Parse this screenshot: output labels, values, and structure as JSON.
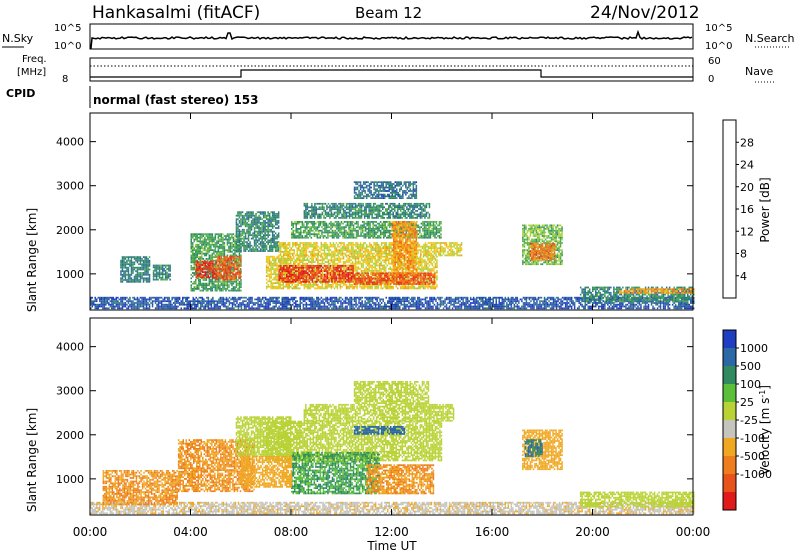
{
  "header": {
    "station": "Hankasalmi (fitACF)",
    "beam": "Beam 12",
    "date": "24/Nov/2012"
  },
  "summary_panels": {
    "nsky_label": "N.Sky",
    "nsearch_label": "N.Search",
    "freq_label_line1": "Freq.",
    "freq_label_line2": "[MHz]",
    "nave_label": "Nave",
    "cpid_label": "CPID",
    "cpid_value": "normal (fast stereo) 153",
    "left_ticks_top": [
      "10^5",
      "10^0"
    ],
    "right_ticks_top": [
      "10^5",
      "10^0"
    ],
    "freq_ticks": [
      "8"
    ],
    "nave_ticks": [
      "60",
      "0"
    ]
  },
  "colors": {
    "power_scale": [
      "#0b1ef2",
      "#203fbf",
      "#2f6a9a",
      "#2f8a66",
      "#51ad4c",
      "#a9d23b",
      "#f3c61c",
      "#f59a1a",
      "#ef6f1a",
      "#e73b1a",
      "#e1141a"
    ],
    "velocity_scale": [
      "#1f3dc1",
      "#2c68a5",
      "#2f8a5f",
      "#5cbf39",
      "#b9d236",
      "#c5c5be",
      "#f0a823",
      "#ed7d1e",
      "#e8531b",
      "#e11b1a"
    ]
  },
  "chart_data": [
    {
      "type": "heatmap",
      "name": "power",
      "title": "Hankasalmi (fitACF) Beam 12 24/Nov/2012",
      "xlabel": "Time UT",
      "ylabel": "Slant Range [km]",
      "x_ticks": [
        "00:00",
        "04:00",
        "08:00",
        "12:00",
        "16:00",
        "20:00",
        "00:00"
      ],
      "x_range_hours": [
        0,
        24
      ],
      "y_ticks": [
        1000,
        2000,
        3000,
        4000
      ],
      "y_range_km": [
        180,
        4650
      ],
      "colorbar_label": "Power [dB]",
      "colorbar_ticks": [
        4,
        8,
        12,
        16,
        20,
        24,
        28
      ],
      "colorbar_range": [
        0,
        32
      ],
      "regions": [
        {
          "t0": 0.0,
          "t1": 24.0,
          "r0": 200,
          "r1": 450,
          "level": 6
        },
        {
          "t0": 1.2,
          "t1": 2.4,
          "r0": 800,
          "r1": 1400,
          "level": 9
        },
        {
          "t0": 2.5,
          "t1": 3.2,
          "r0": 850,
          "r1": 1200,
          "level": 10
        },
        {
          "t0": 4.0,
          "t1": 6.0,
          "r0": 600,
          "r1": 1900,
          "level": 12
        },
        {
          "t0": 4.2,
          "t1": 5.0,
          "r0": 900,
          "r1": 1300,
          "level": 28
        },
        {
          "t0": 5.0,
          "t1": 6.0,
          "r0": 850,
          "r1": 1400,
          "level": 26
        },
        {
          "t0": 5.8,
          "t1": 7.5,
          "r0": 1500,
          "r1": 2400,
          "level": 10
        },
        {
          "t0": 7.0,
          "t1": 13.8,
          "r0": 650,
          "r1": 1400,
          "level": 18
        },
        {
          "t0": 7.5,
          "t1": 10.5,
          "r0": 800,
          "r1": 1200,
          "level": 28
        },
        {
          "t0": 10.5,
          "t1": 13.7,
          "r0": 750,
          "r1": 1000,
          "level": 26
        },
        {
          "t0": 7.5,
          "t1": 14.8,
          "r0": 1400,
          "r1": 1700,
          "level": 18
        },
        {
          "t0": 8.0,
          "t1": 14.0,
          "r0": 1800,
          "r1": 2200,
          "level": 12
        },
        {
          "t0": 8.5,
          "t1": 13.5,
          "r0": 2250,
          "r1": 2600,
          "level": 10
        },
        {
          "t0": 10.5,
          "t1": 13.0,
          "r0": 2700,
          "r1": 3100,
          "level": 8
        },
        {
          "t0": 12.0,
          "t1": 13.0,
          "r0": 1000,
          "r1": 2200,
          "level": 22
        },
        {
          "t0": 17.2,
          "t1": 18.8,
          "r0": 1200,
          "r1": 2100,
          "level": 14
        },
        {
          "t0": 17.5,
          "t1": 18.5,
          "r0": 1300,
          "r1": 1700,
          "level": 24
        },
        {
          "t0": 19.5,
          "t1": 24.0,
          "r0": 350,
          "r1": 700,
          "level": 10
        },
        {
          "t0": 21.0,
          "t1": 24.0,
          "r0": 550,
          "r1": 650,
          "level": 22
        }
      ]
    },
    {
      "type": "heatmap",
      "name": "velocity",
      "xlabel": "Time UT",
      "ylabel": "Slant Range [km]",
      "x_ticks": [
        "00:00",
        "04:00",
        "08:00",
        "12:00",
        "16:00",
        "20:00",
        "00:00"
      ],
      "x_range_hours": [
        0,
        24
      ],
      "y_ticks": [
        1000,
        2000,
        3000,
        4000
      ],
      "y_range_km": [
        180,
        4650
      ],
      "colorbar_label": "Velocity [m s^-1]",
      "colorbar_ticks": [
        "1000",
        "500",
        "100",
        "25",
        "-25",
        "-100",
        "-500",
        "-1000"
      ],
      "regions": [
        {
          "t0": 0.0,
          "t1": 24.0,
          "r0": 200,
          "r1": 450,
          "level": -50
        },
        {
          "t0": 0.5,
          "t1": 3.5,
          "r0": 400,
          "r1": 1200,
          "level": -300
        },
        {
          "t0": 3.5,
          "t1": 6.5,
          "r0": 700,
          "r1": 1900,
          "level": -300
        },
        {
          "t0": 5.8,
          "t1": 8.0,
          "r0": 1500,
          "r1": 2400,
          "level": 0
        },
        {
          "t0": 7.0,
          "t1": 14.0,
          "r0": 1400,
          "r1": 2300,
          "level": 0
        },
        {
          "t0": 8.5,
          "t1": 14.5,
          "r0": 2300,
          "r1": 2700,
          "level": 0
        },
        {
          "t0": 8.0,
          "t1": 11.5,
          "r0": 650,
          "r1": 1600,
          "level": 60
        },
        {
          "t0": 11.0,
          "t1": 13.7,
          "r0": 650,
          "r1": 1300,
          "level": -300
        },
        {
          "t0": 6.0,
          "t1": 8.0,
          "r0": 800,
          "r1": 1500,
          "level": -200
        },
        {
          "t0": 10.5,
          "t1": 13.5,
          "r0": 2700,
          "r1": 3200,
          "level": 0
        },
        {
          "t0": 17.2,
          "t1": 18.8,
          "r0": 1200,
          "r1": 2100,
          "level": -200
        },
        {
          "t0": 17.3,
          "t1": 18.0,
          "r0": 1500,
          "r1": 1900,
          "level": 300
        },
        {
          "t0": 19.5,
          "t1": 24.0,
          "r0": 350,
          "r1": 700,
          "level": 0
        },
        {
          "t0": 10.5,
          "t1": 12.5,
          "r0": 2000,
          "r1": 2200,
          "level": 500
        }
      ]
    }
  ]
}
